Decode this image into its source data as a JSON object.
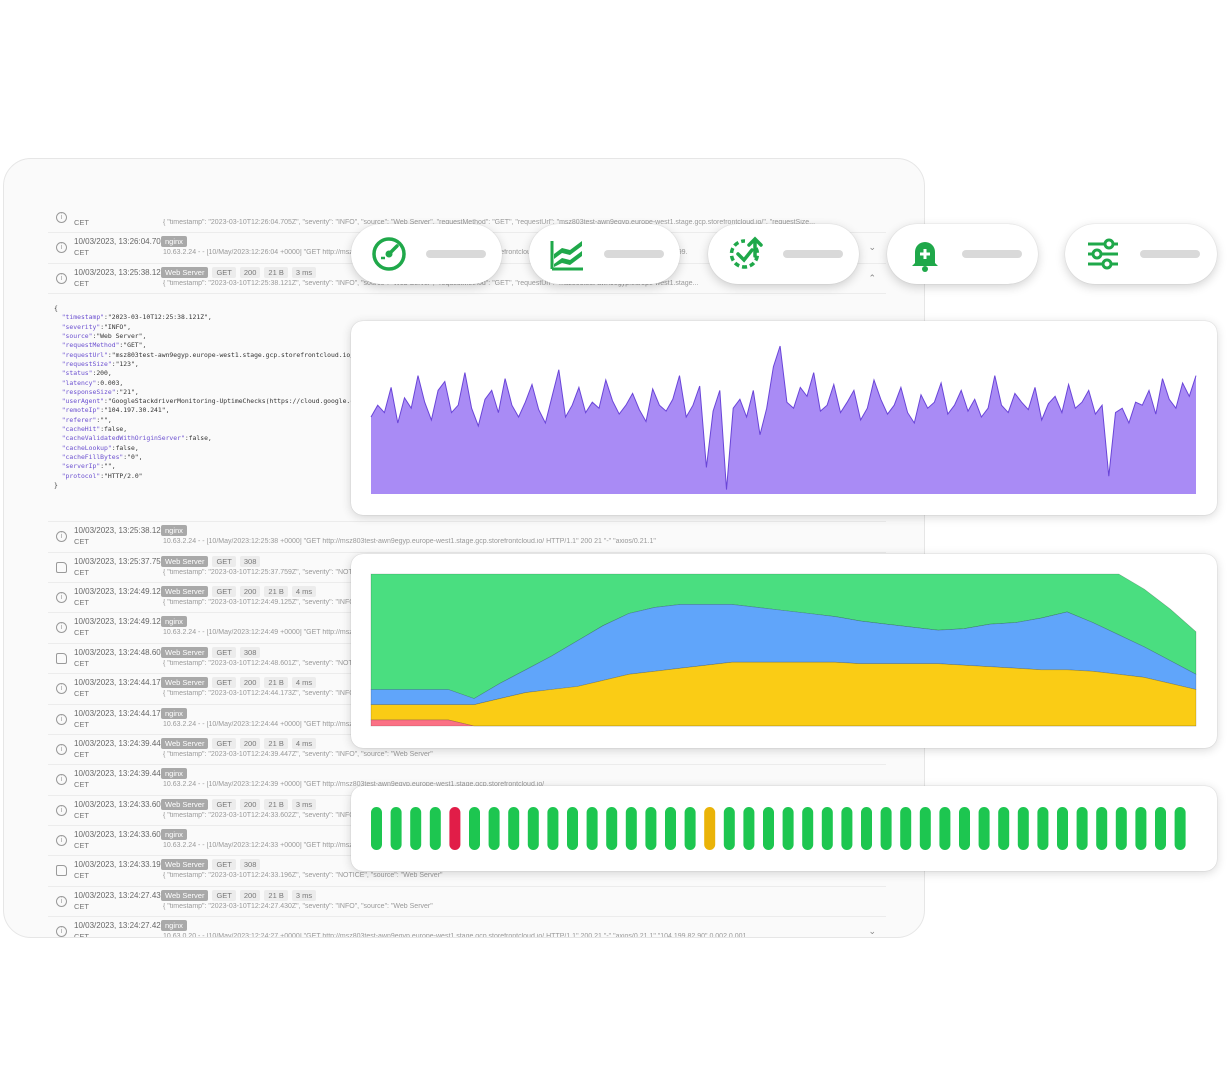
{
  "log_entries": [
    {
      "ts": "",
      "tz": "CET",
      "tags": [],
      "msg": "{ \"timestamp\": \"2023-03-10T12:26:04.705Z\", \"severity\": \"INFO\", \"source\": \"Web Server\", \"requestMethod\": \"GET\", \"requestUrl\": \"msz803test-awn9egyp.europe-west1.stage.gcp.storefrontcloud.io/\", \"requestSize...",
      "icon": "info",
      "chev": ""
    },
    {
      "ts": "10/03/2023, 13:26:04.705",
      "tz": "CET",
      "tags": [
        {
          "t": "nginx",
          "dark": true
        }
      ],
      "msg": "10.63.2.24 - - [10/May/2023:12:26:04 +0000] \"GET http://msz803test-awn9egyp.europe-west1.stage.gcp.storefrontcloud.io/ HTTP/1.1\" 200 21 \"-\" \"axios/0.21.1\" \"104.199.",
      "icon": "info",
      "chev": "⌄"
    },
    {
      "ts": "10/03/2023, 13:25:38.121",
      "tz": "CET",
      "tags": [
        {
          "t": "Web Server",
          "dark": true
        },
        {
          "t": "GET"
        },
        {
          "t": "200"
        },
        {
          "t": "21 B"
        },
        {
          "t": "3 ms"
        }
      ],
      "msg": "{ \"timestamp\": \"2023-03-10T12:25:38.121Z\", \"severity\": \"INFO\", \"source\": \"Web Server\", \"requestMethod\": \"GET\", \"requestUrl\": \"msz803test-awn9egyp.europe-west1.stage...",
      "icon": "info",
      "chev": "⌃"
    }
  ],
  "json_lines": [
    [
      "{",
      "",
      ""
    ],
    [
      "  ",
      "\"timestamp\"",
      ":\"2023-03-10T12:25:38.121Z\","
    ],
    [
      "  ",
      "\"severity\"",
      ":\"INFO\","
    ],
    [
      "  ",
      "\"source\"",
      ":\"Web Server\","
    ],
    [
      "  ",
      "\"requestMethod\"",
      ":\"GET\","
    ],
    [
      "  ",
      "\"requestUrl\"",
      ":\"msz803test-awn9egyp.europe-west1.stage.gcp.storefrontcloud.io/\","
    ],
    [
      "  ",
      "\"requestSize\"",
      ":\"123\","
    ],
    [
      "  ",
      "\"status\"",
      ":200,"
    ],
    [
      "  ",
      "\"latency\"",
      ":0.003,"
    ],
    [
      "  ",
      "\"responseSize\"",
      ":\"21\","
    ],
    [
      "  ",
      "\"userAgent\"",
      ":\"GoogleStackdriverMonitoring-UptimeChecks(https://cloud.google.com/monitoring)\","
    ],
    [
      "  ",
      "\"remoteIp\"",
      ":\"104.197.30.241\","
    ],
    [
      "  ",
      "\"referer\"",
      ":\"\","
    ],
    [
      "  ",
      "\"cacheHit\"",
      ":false,"
    ],
    [
      "  ",
      "\"cacheValidatedWithOriginServer\"",
      ":false,"
    ],
    [
      "  ",
      "\"cacheLookup\"",
      ":false,"
    ],
    [
      "  ",
      "\"cacheFillBytes\"",
      ":\"0\","
    ],
    [
      "  ",
      "\"serverIp\"",
      ":\"\","
    ],
    [
      "  ",
      "\"protocol\"",
      ":\"HTTP/2.0\""
    ],
    [
      "}",
      "",
      ""
    ]
  ],
  "log_entries_after": [
    {
      "ts": "10/03/2023, 13:25:38.121",
      "tz": "CET",
      "tags": [
        {
          "t": "nginx",
          "dark": true
        }
      ],
      "msg": "10.63.2.24 - - [10/May/2023:12:25:38 +0000] \"GET http://msz803test-awn9egyp.europe-west1.stage.gcp.storefrontcloud.io/ HTTP/1.1\" 200 21 \"-\" \"axios/0.21.1\"",
      "icon": "info",
      "chev": ""
    },
    {
      "ts": "10/03/2023, 13:25:37.759",
      "tz": "CET",
      "tags": [
        {
          "t": "Web Server",
          "dark": true
        },
        {
          "t": "GET"
        },
        {
          "t": "308"
        }
      ],
      "msg": "{ \"timestamp\": \"2023-03-10T12:25:37.759Z\", \"severity\": \"NOTICE\", \"source\": \"Web Server\", \"requestMethod\": \"GET\", \"requestUrl\": \"msz803test-awn9egyp.europe-west1.stage.gcp.storefrontcloud.io/\", \"requestSi...",
      "icon": "file",
      "chev": "⌄"
    },
    {
      "ts": "10/03/2023, 13:24:49.125",
      "tz": "CET",
      "tags": [
        {
          "t": "Web Server",
          "dark": true
        },
        {
          "t": "GET"
        },
        {
          "t": "200"
        },
        {
          "t": "21 B"
        },
        {
          "t": "4 ms"
        }
      ],
      "msg": "{ \"timestamp\": \"2023-03-10T12:24:49.125Z\", \"severity\": \"INFO\", \"source\": \"Web Server\"",
      "icon": "info",
      "chev": ""
    },
    {
      "ts": "10/03/2023, 13:24:49.125",
      "tz": "CET",
      "tags": [
        {
          "t": "nginx",
          "dark": true
        }
      ],
      "msg": "10.63.2.24 - - [10/May/2023:12:24:49 +0000] \"GET http://msz803test-awn9egyp.europe-west1.stage.gcp.storefrontcloud.io/",
      "icon": "info",
      "chev": ""
    },
    {
      "ts": "10/03/2023, 13:24:48.601",
      "tz": "CET",
      "tags": [
        {
          "t": "Web Server",
          "dark": true
        },
        {
          "t": "GET"
        },
        {
          "t": "308"
        }
      ],
      "msg": "{ \"timestamp\": \"2023-03-10T12:24:48.601Z\", \"severity\": \"NOTICE\", \"source\": \"Web Server\"",
      "icon": "file",
      "chev": ""
    },
    {
      "ts": "10/03/2023, 13:24:44.173",
      "tz": "CET",
      "tags": [
        {
          "t": "Web Server",
          "dark": true
        },
        {
          "t": "GET"
        },
        {
          "t": "200"
        },
        {
          "t": "21 B"
        },
        {
          "t": "4 ms"
        }
      ],
      "msg": "{ \"timestamp\": \"2023-03-10T12:24:44.173Z\", \"severity\": \"INFO\", \"source\": \"Web Server\"",
      "icon": "info",
      "chev": ""
    },
    {
      "ts": "10/03/2023, 13:24:44.173",
      "tz": "CET",
      "tags": [
        {
          "t": "nginx",
          "dark": true
        }
      ],
      "msg": "10.63.2.24 - - [10/May/2023:12:24:44 +0000] \"GET http://msz803test-awn9egyp.europe-west1.stage.gcp.storefrontcloud.io/",
      "icon": "info",
      "chev": ""
    },
    {
      "ts": "10/03/2023, 13:24:39.447",
      "tz": "CET",
      "tags": [
        {
          "t": "Web Server",
          "dark": true
        },
        {
          "t": "GET"
        },
        {
          "t": "200"
        },
        {
          "t": "21 B"
        },
        {
          "t": "4 ms"
        }
      ],
      "msg": "{ \"timestamp\": \"2023-03-10T12:24:39.447Z\", \"severity\": \"INFO\", \"source\": \"Web Server\"",
      "icon": "info",
      "chev": ""
    },
    {
      "ts": "10/03/2023, 13:24:39.447",
      "tz": "CET",
      "tags": [
        {
          "t": "nginx",
          "dark": true
        }
      ],
      "msg": "10.63.2.24 - - [10/May/2023:12:24:39 +0000] \"GET http://msz803test-awn9egyp.europe-west1.stage.gcp.storefrontcloud.io/",
      "icon": "info",
      "chev": ""
    },
    {
      "ts": "10/03/2023, 13:24:33.602",
      "tz": "CET",
      "tags": [
        {
          "t": "Web Server",
          "dark": true
        },
        {
          "t": "GET"
        },
        {
          "t": "200"
        },
        {
          "t": "21 B"
        },
        {
          "t": "3 ms"
        }
      ],
      "msg": "{ \"timestamp\": \"2023-03-10T12:24:33.602Z\", \"severity\": \"INFO\", \"source\": \"Web Server\", \"requestMethod\": \"GET\", \"requestUrl\": \"msz803test-awn9egyp.europe-west1.stage.gcp.storefrontcloud.io/\", \"requestSize...",
      "icon": "info",
      "chev": "⌄"
    },
    {
      "ts": "10/03/2023, 13:24:33.601",
      "tz": "CET",
      "tags": [
        {
          "t": "nginx",
          "dark": true
        }
      ],
      "msg": "10.63.2.24 - - [10/May/2023:12:24:33 +0000] \"GET http://msz803test-awn9egyp.europe-west1.stage.gcp.storefrontcloud.io/",
      "icon": "info",
      "chev": ""
    },
    {
      "ts": "10/03/2023, 13:24:33.196",
      "tz": "CET",
      "tags": [
        {
          "t": "Web Server",
          "dark": true
        },
        {
          "t": "GET"
        },
        {
          "t": "308"
        }
      ],
      "msg": "{ \"timestamp\": \"2023-03-10T12:24:33.196Z\", \"severity\": \"NOTICE\", \"source\": \"Web Server\"",
      "icon": "file",
      "chev": ""
    },
    {
      "ts": "10/03/2023, 13:24:27.430",
      "tz": "CET",
      "tags": [
        {
          "t": "Web Server",
          "dark": true
        },
        {
          "t": "GET"
        },
        {
          "t": "200"
        },
        {
          "t": "21 B"
        },
        {
          "t": "3 ms"
        }
      ],
      "msg": "{ \"timestamp\": \"2023-03-10T12:24:27.430Z\", \"severity\": \"INFO\", \"source\": \"Web Server\"",
      "icon": "info",
      "chev": ""
    },
    {
      "ts": "10/03/2023, 13:24:27.429",
      "tz": "CET",
      "tags": [
        {
          "t": "nginx",
          "dark": true
        }
      ],
      "msg": "10.63.0.20 - - [10/May/2023:12:24:27 +0000] \"GET http://msz803test-awn9egyp.europe-west1.stage.gcp.storefrontcloud.io/ HTTP/1.1\" 200 21 \"-\" \"axios/0.21.1\" \"104.199.82.90\" 0.002 0.001",
      "icon": "info",
      "chev": "⌄"
    },
    {
      "ts": "10/03/2023, 13:24:20.054",
      "tz": "CET",
      "tags": [
        {
          "t": "Web Server",
          "dark": true
        },
        {
          "t": "GET"
        },
        {
          "t": "200"
        },
        {
          "t": "21 B"
        },
        {
          "t": "3 ms"
        }
      ],
      "msg": "{ \"timestamp\": \"2023-03-10T12:24:20.054Z\", \"severity\": \"INFO\", \"source\": \"Web Server\", \"requestMethod\": \"GET\", \"requestUrl\": \"msz803test-awn9egyp.europe-west1.stage.gcp.storefrontcloud.io/\", \"requestSize...",
      "icon": "info",
      "chev": "⌄"
    }
  ],
  "feature_pills": [
    {
      "icon": "speedometer-icon"
    },
    {
      "icon": "stacked-area-chart-icon"
    },
    {
      "icon": "uptime-check-icon"
    },
    {
      "icon": "alert-bell-icon"
    },
    {
      "icon": "settings-sliders-icon"
    }
  ],
  "colors": {
    "accent": "#1fa84a",
    "purple_fill": "#a98bf5",
    "purple_line": "#6a45d8",
    "green": "#4ade80",
    "blue": "#60a5fa",
    "yellow": "#facc15",
    "red": "#fb7185",
    "bar_green": "#1dc650",
    "bar_red": "#e11d48",
    "bar_amber": "#eab308"
  },
  "chart_data": [
    {
      "type": "area",
      "series": [
        {
          "values": [
            0.52,
            0.6,
            0.55,
            0.72,
            0.48,
            0.65,
            0.58,
            0.8,
            0.62,
            0.5,
            0.7,
            0.76,
            0.55,
            0.6,
            0.82,
            0.58,
            0.46,
            0.64,
            0.7,
            0.55,
            0.78,
            0.6,
            0.52,
            0.62,
            0.74,
            0.57,
            0.48,
            0.66,
            0.84,
            0.52,
            0.6,
            0.72,
            0.55,
            0.62,
            0.58,
            0.77,
            0.63,
            0.54,
            0.6,
            0.68,
            0.57,
            0.49,
            0.71,
            0.6,
            0.56,
            0.64,
            0.8,
            0.52,
            0.6,
            0.73,
            0.18,
            0.56,
            0.7,
            0.03,
            0.58,
            0.64,
            0.52,
            0.7,
            0.4,
            0.58,
            0.86,
            1.0,
            0.62,
            0.58,
            0.72,
            0.66,
            0.82,
            0.56,
            0.6,
            0.74,
            0.55,
            0.62,
            0.7,
            0.5,
            0.58,
            0.77,
            0.64,
            0.54,
            0.6,
            0.72,
            0.55,
            0.48,
            0.67,
            0.58,
            0.62,
            0.75,
            0.54,
            0.6,
            0.7,
            0.56,
            0.64,
            0.52,
            0.58,
            0.8,
            0.6,
            0.55,
            0.68,
            0.62,
            0.57,
            0.72,
            0.5,
            0.61,
            0.66,
            0.55,
            0.74,
            0.58,
            0.62,
            0.7,
            0.54,
            0.6,
            0.12,
            0.55,
            0.58,
            0.48,
            0.62,
            0.6,
            0.7,
            0.54,
            0.78,
            0.64,
            0.58,
            0.75,
            0.66,
            0.8
          ]
        }
      ]
    },
    {
      "type": "area",
      "series": [
        {
          "values": [
            0.04,
            0.04,
            0.04,
            0.04,
            0.0,
            0.0,
            0.0,
            0.0,
            0.0,
            0.0,
            0.0,
            0.0,
            0.0,
            0.0,
            0.0,
            0.0,
            0.0,
            0.0,
            0.0,
            0.0,
            0.0,
            0.0,
            0.0,
            0.0,
            0.0,
            0.0,
            0.0,
            0.0,
            0.0,
            0.0,
            0.0,
            0.0,
            0.0
          ]
        },
        {
          "values": [
            0.1,
            0.1,
            0.1,
            0.1,
            0.14,
            0.18,
            0.22,
            0.24,
            0.26,
            0.3,
            0.34,
            0.36,
            0.38,
            0.4,
            0.42,
            0.42,
            0.42,
            0.42,
            0.42,
            0.41,
            0.41,
            0.41,
            0.41,
            0.4,
            0.39,
            0.38,
            0.37,
            0.37,
            0.36,
            0.34,
            0.32,
            0.28,
            0.24
          ]
        },
        {
          "values": [
            0.1,
            0.1,
            0.1,
            0.1,
            0.04,
            0.1,
            0.15,
            0.22,
            0.3,
            0.36,
            0.4,
            0.42,
            0.42,
            0.4,
            0.38,
            0.36,
            0.34,
            0.32,
            0.3,
            0.28,
            0.26,
            0.24,
            0.22,
            0.24,
            0.28,
            0.3,
            0.34,
            0.38,
            0.32,
            0.26,
            0.2,
            0.15,
            0.1
          ]
        },
        {
          "values": [
            0.96,
            0.96,
            0.96,
            0.96,
            0.92,
            0.78,
            0.64,
            0.54,
            0.52,
            0.52,
            0.52,
            0.52,
            0.52,
            0.52,
            0.52,
            0.52,
            0.52,
            0.54,
            0.52,
            0.5,
            0.48,
            0.48,
            0.46,
            0.5,
            0.54,
            0.54,
            0.56,
            0.5,
            0.44,
            0.4,
            0.38,
            0.34,
            0.28
          ]
        }
      ]
    },
    {
      "type": "bar",
      "statuses": [
        "ok",
        "ok",
        "ok",
        "ok",
        "error",
        "ok",
        "ok",
        "ok",
        "ok",
        "ok",
        "ok",
        "ok",
        "ok",
        "ok",
        "ok",
        "ok",
        "ok",
        "warning",
        "ok",
        "ok",
        "ok",
        "ok",
        "ok",
        "ok",
        "ok",
        "ok",
        "ok",
        "ok",
        "ok",
        "ok",
        "ok",
        "ok",
        "ok",
        "ok",
        "ok",
        "ok",
        "ok",
        "ok",
        "ok",
        "ok",
        "ok",
        "ok"
      ]
    }
  ]
}
